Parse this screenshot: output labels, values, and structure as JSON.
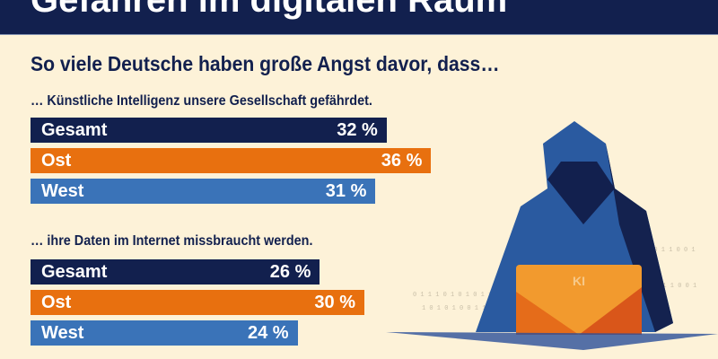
{
  "header": {
    "title": "Gefahren im digitalen Raum"
  },
  "subtitle": "So viele Deutsche haben große Angst davor, dass…",
  "illustration": {
    "laptop_label": "KI"
  },
  "colors": {
    "Gesamt": "#12204e",
    "Ost": "#e8700f",
    "West": "#3a73b8"
  },
  "chart_data": [
    {
      "type": "bar",
      "title": "… Künstliche Intelligenz unsere Gesellschaft gefährdet.",
      "categories": [
        "Gesamt",
        "Ost",
        "West"
      ],
      "values": [
        32,
        36,
        31
      ],
      "labels": [
        "32 %",
        "36 %",
        "31 %"
      ],
      "unit": "%"
    },
    {
      "type": "bar",
      "title": "… ihre Daten im Internet missbraucht werden.",
      "categories": [
        "Gesamt",
        "Ost",
        "West"
      ],
      "values": [
        26,
        30,
        24
      ],
      "labels": [
        "26 %",
        "30 %",
        "24 %"
      ],
      "unit": "%"
    }
  ]
}
